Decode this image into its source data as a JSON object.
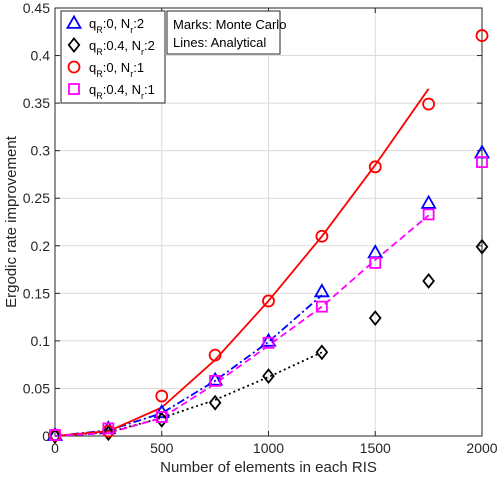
{
  "chart_data": {
    "type": "line",
    "xlabel": "Number of elements in each RIS",
    "ylabel": "Ergodic rate improvement",
    "xlim": [
      0,
      2000
    ],
    "ylim": [
      0,
      0.45
    ],
    "xticks": [
      0,
      500,
      1000,
      1500,
      2000
    ],
    "yticks": [
      0,
      0.05,
      0.1,
      0.15,
      0.2,
      0.25,
      0.3,
      0.35,
      0.4,
      0.45
    ],
    "xtick_labels": [
      "0",
      "500",
      "1000",
      "1500",
      "2000"
    ],
    "ytick_labels": [
      "0",
      "0.05",
      "0.1",
      "0.15",
      "0.2",
      "0.25",
      "0.3",
      "0.35",
      "0.4",
      "0.45"
    ],
    "grid": true,
    "legend_position": "top-left",
    "annotation": {
      "line1": "Marks: Monte Carlo",
      "line2": "Lines: Analytical"
    },
    "series": [
      {
        "name": "qR:0, Nr:2",
        "legend": {
          "main": "q",
          "sub1": "R",
          "mid": ":0, N",
          "sub2": "r",
          "end": ":2"
        },
        "color": "#0000ff",
        "marker": "triangle",
        "line_style": "dashdot",
        "markers_x": [
          0,
          250,
          500,
          750,
          1000,
          1250,
          1500,
          1750,
          2000
        ],
        "markers_y": [
          0.001,
          0.008,
          0.025,
          0.059,
          0.1,
          0.152,
          0.193,
          0.245,
          0.298
        ],
        "line_x": [
          0,
          250,
          500,
          750,
          1000,
          1250
        ],
        "line_y": [
          0.0,
          0.006,
          0.024,
          0.058,
          0.099,
          0.148
        ]
      },
      {
        "name": "qR:0.4, Nr:2",
        "legend": {
          "main": "q",
          "sub1": "R",
          "mid": ":0.4, N",
          "sub2": "r",
          "end": ":2"
        },
        "color": "#000000",
        "marker": "diamond",
        "line_style": "dotted",
        "markers_x": [
          0,
          250,
          500,
          750,
          1000,
          1250,
          1500,
          1750,
          2000
        ],
        "markers_y": [
          0.0,
          0.003,
          0.017,
          0.035,
          0.063,
          0.088,
          0.124,
          0.163,
          0.199
        ],
        "line_x": [
          0,
          250,
          500,
          750,
          1000,
          1250
        ],
        "line_y": [
          0.0,
          0.004,
          0.019,
          0.038,
          0.062,
          0.088
        ]
      },
      {
        "name": "qR:0, Nr:1",
        "legend": {
          "main": "q",
          "sub1": "R",
          "mid": ":0, N",
          "sub2": "r",
          "end": ":1"
        },
        "color": "#ff0000",
        "marker": "circle",
        "line_style": "solid",
        "markers_x": [
          0,
          250,
          500,
          750,
          1000,
          1250,
          1500,
          1750,
          2000
        ],
        "markers_y": [
          0.001,
          0.005,
          0.042,
          0.085,
          0.142,
          0.21,
          0.283,
          0.349,
          0.421
        ],
        "line_x": [
          0,
          250,
          500,
          750,
          1000,
          1250,
          1500,
          1750
        ],
        "line_y": [
          0.0,
          0.005,
          0.03,
          0.08,
          0.142,
          0.21,
          0.285,
          0.365
        ]
      },
      {
        "name": "qR:0.4, Nr:1",
        "legend": {
          "main": "q",
          "sub1": "R",
          "mid": ":0.4, N",
          "sub2": "r",
          "end": ":1"
        },
        "color": "#ff00ff",
        "marker": "square",
        "line_style": "dashed",
        "markers_x": [
          0,
          250,
          500,
          750,
          1000,
          1250,
          1500,
          1750,
          2000
        ],
        "markers_y": [
          0.001,
          0.008,
          0.02,
          0.058,
          0.098,
          0.136,
          0.182,
          0.233,
          0.288
        ],
        "line_x": [
          0,
          250,
          500,
          750,
          1000,
          1250,
          1500,
          1750
        ],
        "line_y": [
          0.0,
          0.003,
          0.019,
          0.055,
          0.095,
          0.136,
          0.185,
          0.232
        ]
      }
    ]
  }
}
